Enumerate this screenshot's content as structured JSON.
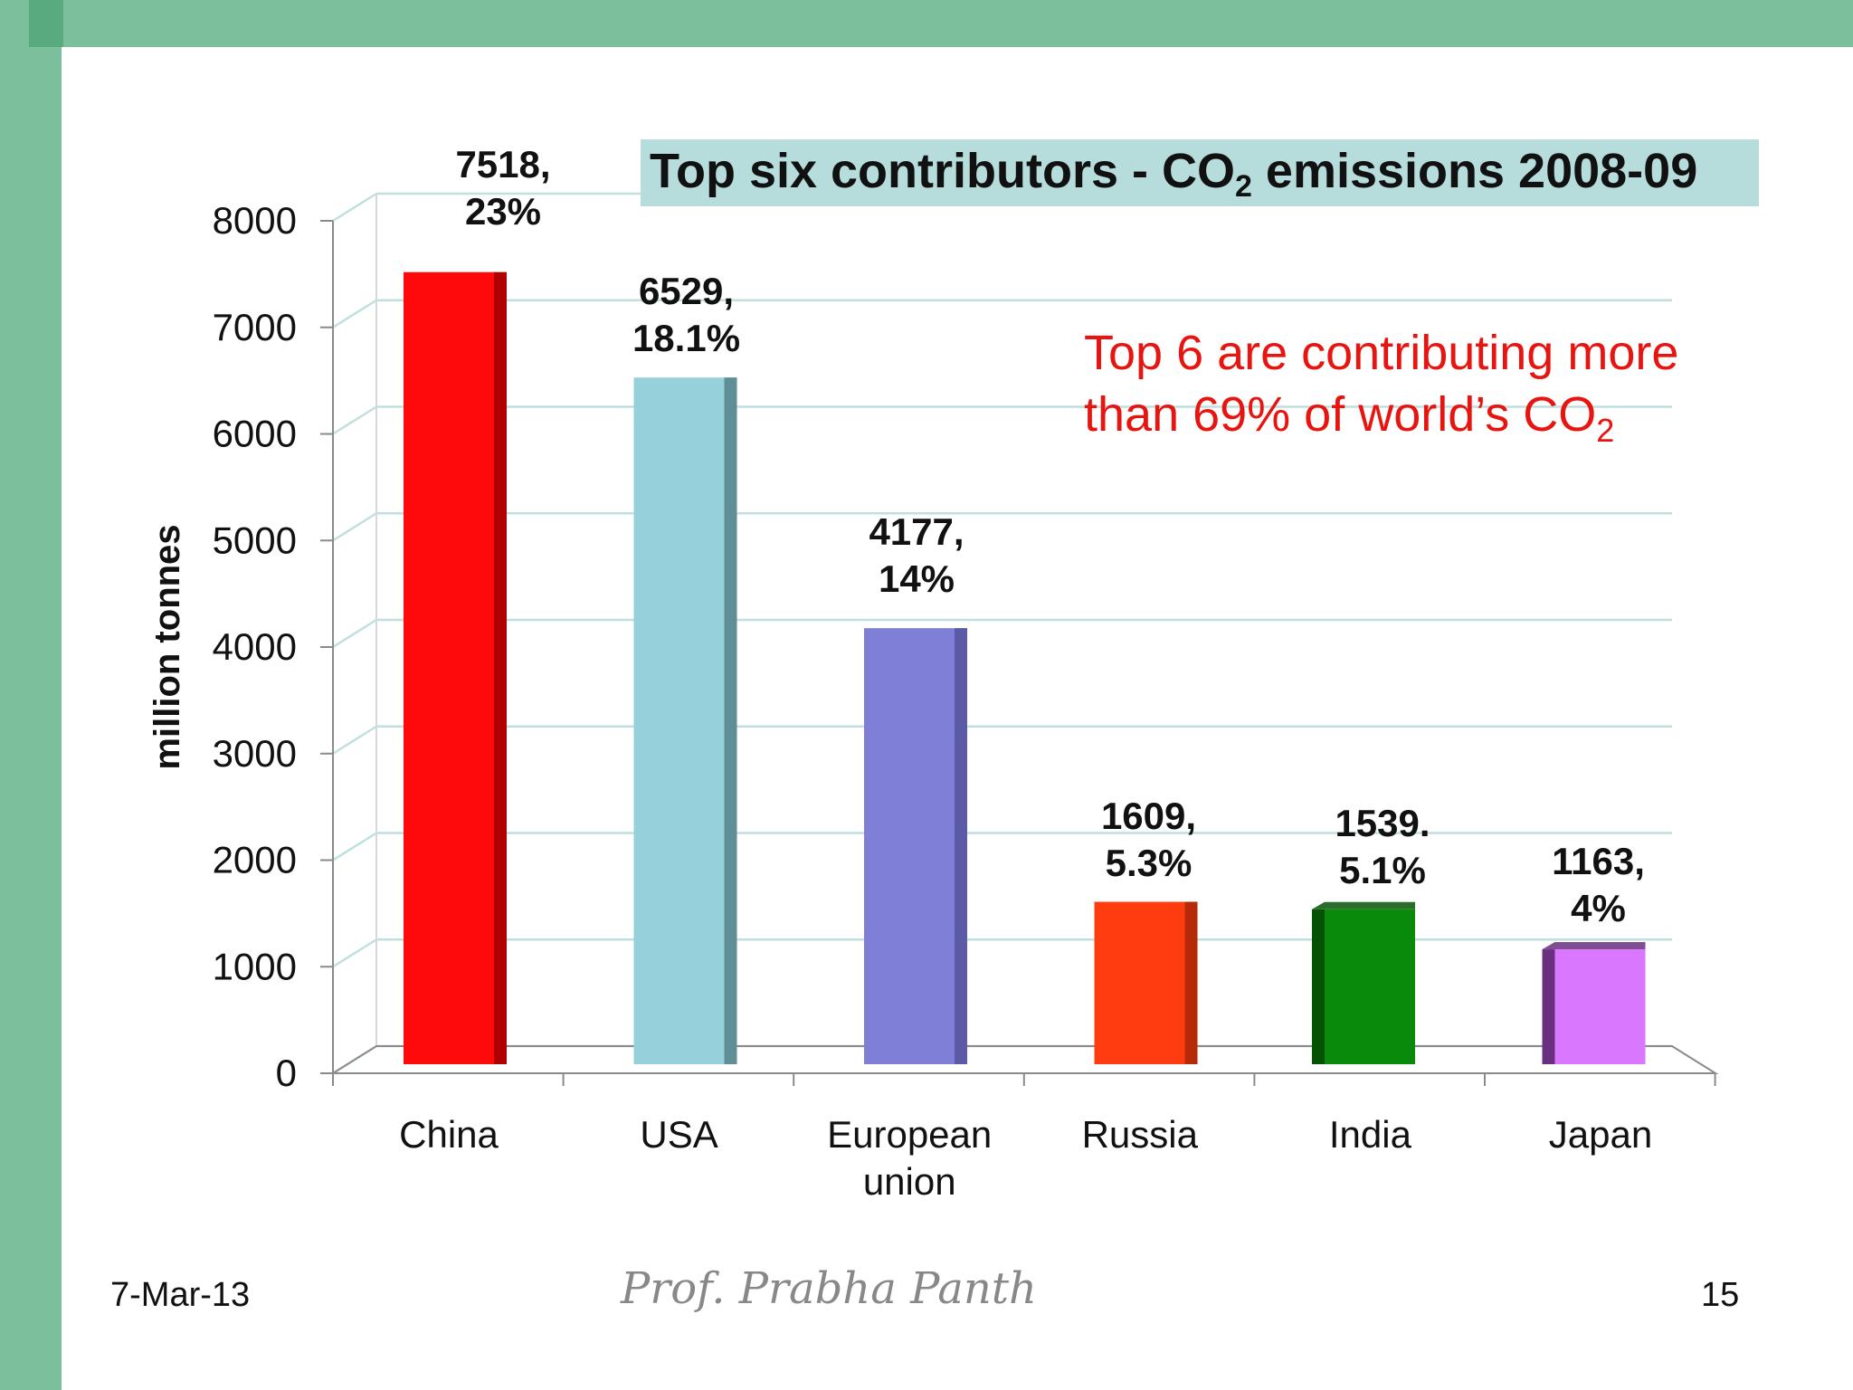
{
  "slide": {
    "date": "7-Mar-13",
    "author": "Prof. Prabha Panth",
    "page_number": "15",
    "callout": {
      "main": "Top 6 are contributing more than 69% of world’s CO",
      "sub": "2",
      "color": "#e8140f"
    },
    "colors": {
      "band": "#7bbf9c",
      "title_bg": "#b7dcdc"
    }
  },
  "chart_data": {
    "type": "bar",
    "title": {
      "main": "Top six contributors - CO",
      "sub": "2",
      "rest": " emissions 2008-09"
    },
    "ylabel": "million tonnes",
    "xlabel": "",
    "ylim": [
      0,
      8000
    ],
    "yticks": [
      0,
      1000,
      2000,
      3000,
      4000,
      5000,
      6000,
      7000,
      8000
    ],
    "grid": true,
    "categories": [
      [
        "China"
      ],
      [
        "USA"
      ],
      [
        "European",
        "union"
      ],
      [
        "Russia"
      ],
      [
        "India"
      ],
      [
        "Japan"
      ]
    ],
    "values": [
      7518,
      6529,
      4177,
      1609,
      1539,
      1163
    ],
    "data_labels": [
      [
        "7518,",
        "23%"
      ],
      [
        "6529,",
        "18.1%"
      ],
      [
        "4177,",
        "14%"
      ],
      [
        "1609,",
        "5.3%"
      ],
      [
        "1539.",
        "5.1%"
      ],
      [
        "1163,",
        "4%"
      ]
    ],
    "colors": [
      "#ff0a0a",
      "#96d0da",
      "#7f7fd8",
      "#ff3c10",
      "#0a8a0a",
      "#d977ff"
    ],
    "side_colors": [
      "#b00000",
      "#5e8e96",
      "#5a5aa6",
      "#b52a08",
      "#055205",
      "#6a3080"
    ]
  }
}
